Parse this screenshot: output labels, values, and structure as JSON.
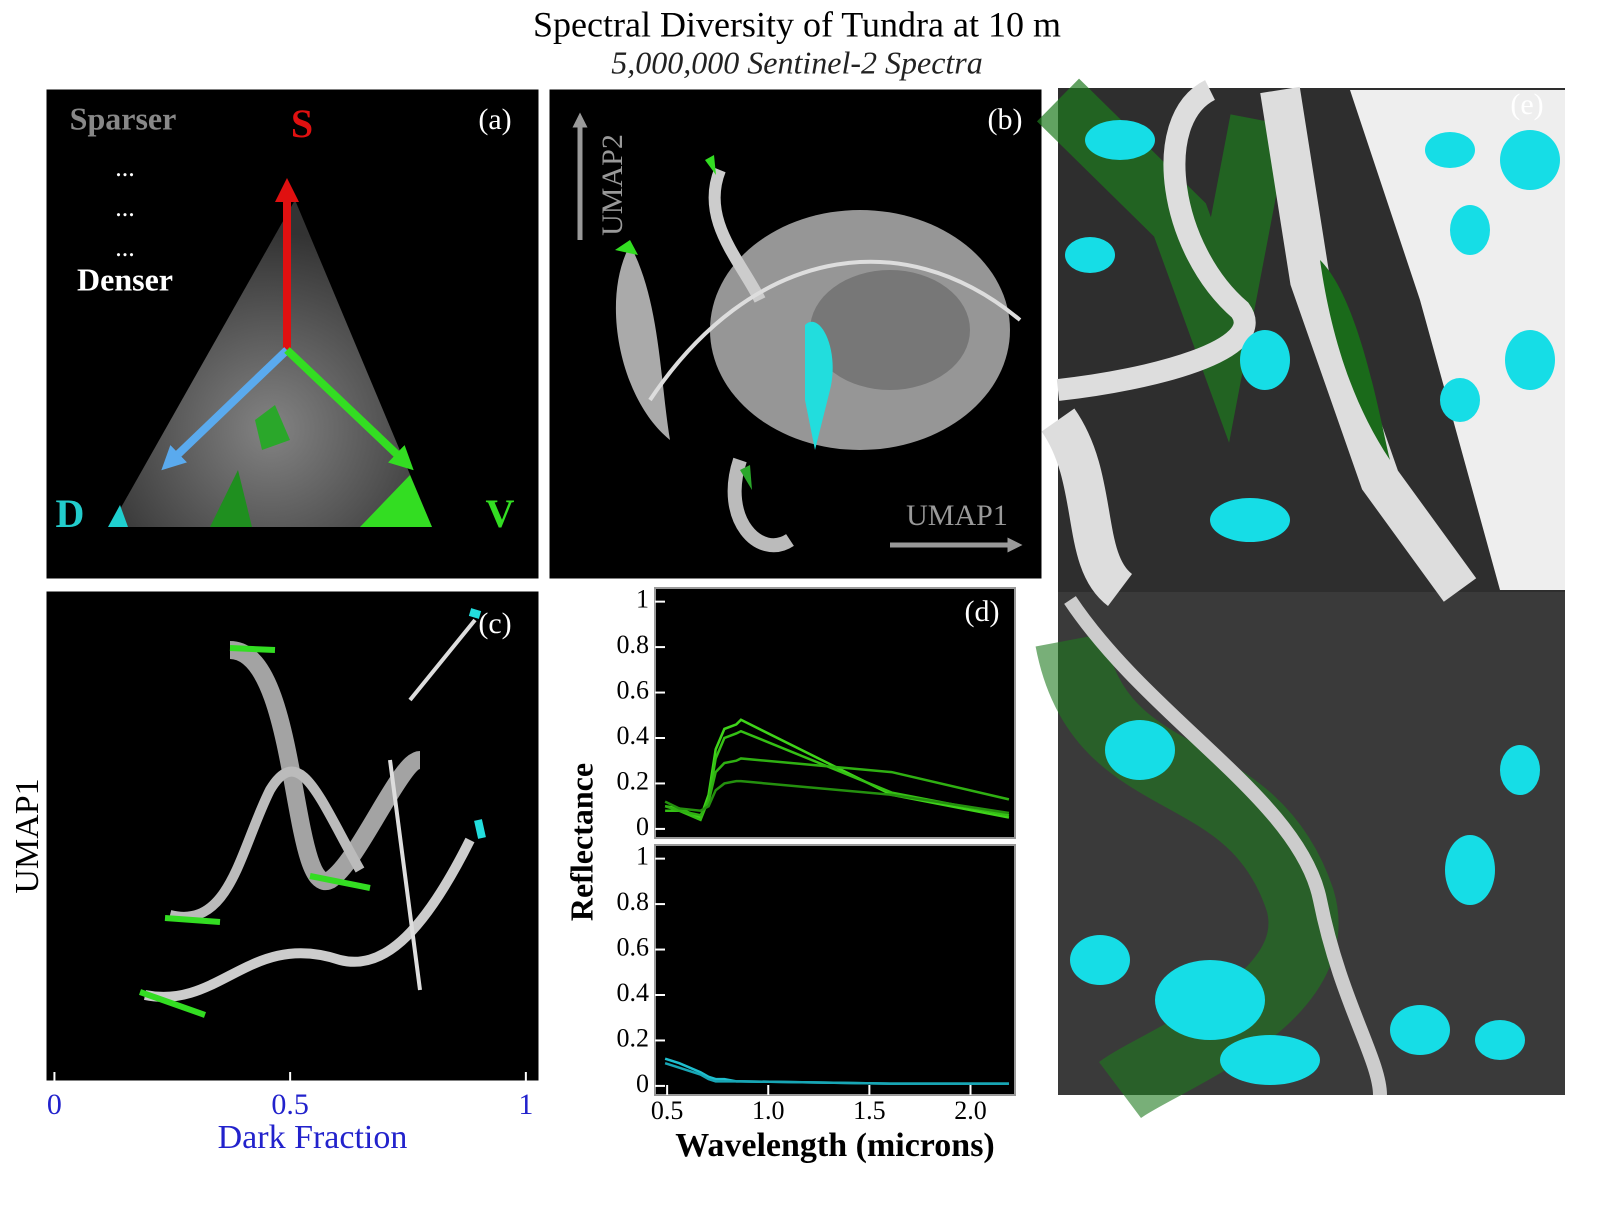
{
  "title": "Spectral Diversity of Tundra at 10 m",
  "subtitle": "5,000,000 Sentinel-2 Spectra",
  "chart_data": [
    {
      "type": "image",
      "panel_label": "(a)",
      "annotations": [
        "Sparser",
        "...",
        "...",
        "...",
        "Denser",
        "S",
        "D",
        "V"
      ]
    },
    {
      "type": "image",
      "panel_label": "(b)",
      "annotations": [
        "UMAP2",
        "UMAP1"
      ]
    },
    {
      "type": "image",
      "panel_label": "(c)",
      "xlabel": "Dark Fraction",
      "ylabel": "UMAP1",
      "xlim": [
        -0.02,
        1.03
      ],
      "xticks": [
        0,
        0.5,
        1
      ]
    },
    {
      "type": "line",
      "panel_label": "(d)",
      "ylabel": "Reflectance",
      "x": [
        0.49,
        0.56,
        0.665,
        0.705,
        0.74,
        0.783,
        0.842,
        0.865,
        1.61,
        2.19
      ],
      "xlim": [
        0.44,
        2.22
      ],
      "ylim": [
        -0.04,
        1.06
      ],
      "yticks": [
        0,
        0.2,
        0.4,
        0.6,
        0.8,
        1
      ],
      "series": [
        {
          "color": "#3fd41a",
          "values": [
            0.1,
            0.09,
            0.05,
            0.15,
            0.35,
            0.44,
            0.46,
            0.48,
            0.15,
            0.05
          ]
        },
        {
          "color": "#35c015",
          "values": [
            0.08,
            0.08,
            0.04,
            0.13,
            0.31,
            0.4,
            0.42,
            0.43,
            0.16,
            0.06
          ]
        },
        {
          "color": "#2fb012",
          "values": [
            0.1,
            0.08,
            0.06,
            0.12,
            0.25,
            0.29,
            0.3,
            0.31,
            0.25,
            0.13
          ]
        },
        {
          "color": "#24900e",
          "values": [
            0.12,
            0.09,
            0.08,
            0.1,
            0.17,
            0.2,
            0.21,
            0.21,
            0.15,
            0.07
          ]
        }
      ]
    },
    {
      "type": "line",
      "xlabel": "Wavelength (microns)",
      "x": [
        0.49,
        0.56,
        0.665,
        0.705,
        0.74,
        0.783,
        0.842,
        0.865,
        1.61,
        2.19
      ],
      "xlim": [
        0.44,
        2.22
      ],
      "ylim": [
        -0.04,
        1.06
      ],
      "yticks": [
        0,
        0.2,
        0.4,
        0.6,
        0.8,
        1
      ],
      "xticks": [
        0.5,
        {
          "value": 1,
          "label": "1.0"
        },
        1.5,
        {
          "value": 2,
          "label": "2.0"
        }
      ],
      "series": [
        {
          "color": "#1fbfcf",
          "values": [
            0.12,
            0.1,
            0.06,
            0.04,
            0.03,
            0.03,
            0.02,
            0.02,
            0.01,
            0.01
          ]
        },
        {
          "color": "#18a6b5",
          "values": [
            0.1,
            0.08,
            0.05,
            0.03,
            0.02,
            0.02,
            0.02,
            0.02,
            0.01,
            0.01
          ]
        }
      ]
    },
    {
      "type": "image",
      "panel_label": "(e)"
    }
  ]
}
